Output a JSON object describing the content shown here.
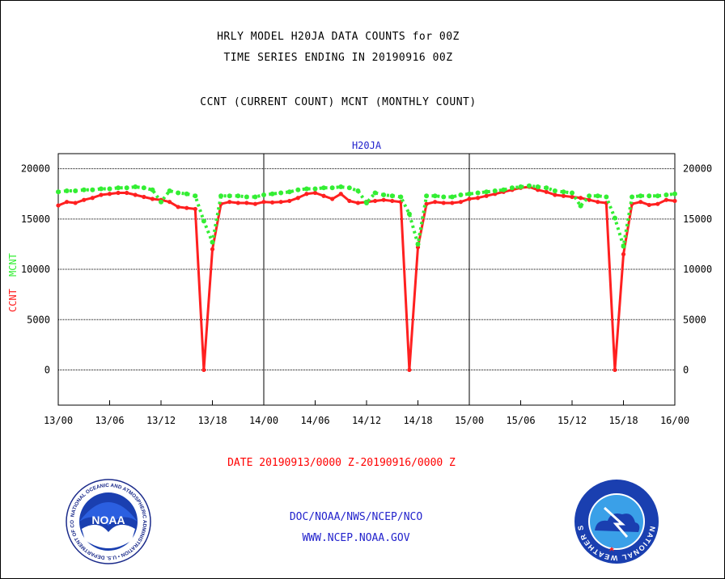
{
  "header": {
    "title_line1": "HRLY MODEL H20JA DATA COUNTS for 00Z",
    "title_line2": "TIME SERIES ENDING IN 20190916 00Z",
    "subtitle": "CCNT (CURRENT COUNT) MCNT (MONTHLY COUNT)"
  },
  "footer": {
    "date_range": "DATE 20190913/0000 Z-20190916/0000 Z",
    "org": "DOC/NOAA/NWS/NCEP/NCO",
    "url": "WWW.NCEP.NOAA.GOV"
  },
  "logos": {
    "noaa_text": "NOAA",
    "noaa_ring": "NATIONAL OCEANIC AND ATMOSPHERIC ADMINISTRATION • U.S. DEPARTMENT OF COMMERCE",
    "nws_ring": "NATIONAL WEATHER SERVICE"
  },
  "colors": {
    "ccnt": "#ff2020",
    "mcnt": "#33ee33",
    "text_blue": "#2222cc"
  },
  "chart_data": {
    "type": "line",
    "title": "H20JA",
    "ylabel_ccnt": "CCNT",
    "ylabel_mcnt": "MCNT",
    "ylim": [
      -3500,
      21500
    ],
    "yticks": [
      0,
      5000,
      10000,
      15000,
      20000
    ],
    "xlim": [
      0,
      72
    ],
    "xtick_labels": [
      "13/00",
      "13/06",
      "13/12",
      "13/18",
      "14/00",
      "14/06",
      "14/12",
      "14/18",
      "15/00",
      "15/06",
      "15/12",
      "15/18",
      "16/00"
    ],
    "grid": true,
    "series": [
      {
        "name": "CCNT",
        "color": "#ff2020",
        "style": "solid",
        "x": [
          0,
          1,
          2,
          3,
          4,
          5,
          6,
          7,
          8,
          9,
          10,
          11,
          12,
          13,
          14,
          15,
          16,
          17,
          18,
          19,
          20,
          21,
          22,
          23,
          24,
          25,
          26,
          27,
          28,
          29,
          30,
          31,
          32,
          33,
          34,
          35,
          36,
          37,
          38,
          39,
          40,
          41,
          42,
          43,
          44,
          45,
          46,
          47,
          48,
          49,
          50,
          51,
          52,
          53,
          54,
          55,
          56,
          57,
          58,
          59,
          60,
          61,
          62,
          63,
          64,
          65,
          66,
          67,
          68,
          69,
          70,
          71,
          72
        ],
        "values": [
          16350,
          16700,
          16600,
          16900,
          17100,
          17400,
          17500,
          17600,
          17600,
          17400,
          17200,
          17000,
          16900,
          16700,
          16200,
          16100,
          16000,
          0,
          12000,
          16500,
          16700,
          16600,
          16600,
          16500,
          16700,
          16650,
          16700,
          16800,
          17100,
          17500,
          17600,
          17300,
          17000,
          17500,
          16800,
          16600,
          16700,
          16800,
          16900,
          16800,
          16700,
          0,
          12200,
          16500,
          16700,
          16600,
          16600,
          16700,
          17000,
          17100,
          17300,
          17500,
          17700,
          17900,
          18100,
          18200,
          17900,
          17700,
          17400,
          17300,
          17200,
          17100,
          16900,
          16700,
          16600,
          0,
          11500,
          16500,
          16700,
          16400,
          16500,
          16900,
          16800
        ]
      },
      {
        "name": "MCNT",
        "color": "#33ee33",
        "style": "dotted",
        "x": [
          0,
          1,
          2,
          3,
          4,
          5,
          6,
          7,
          8,
          9,
          10,
          11,
          12,
          13,
          14,
          15,
          16,
          17,
          18,
          19,
          20,
          21,
          22,
          23,
          24,
          25,
          26,
          27,
          28,
          29,
          30,
          31,
          32,
          33,
          34,
          35,
          36,
          37,
          38,
          39,
          40,
          41,
          42,
          43,
          44,
          45,
          46,
          47,
          48,
          49,
          50,
          51,
          52,
          53,
          54,
          55,
          56,
          57,
          58,
          59,
          60,
          61,
          62,
          63,
          64,
          65,
          66,
          67,
          68,
          69,
          70,
          71,
          72
        ],
        "values": [
          17700,
          17800,
          17800,
          17900,
          17900,
          18000,
          18000,
          18100,
          18100,
          18200,
          18100,
          17900,
          16700,
          17800,
          17600,
          17500,
          17300,
          14800,
          12700,
          17300,
          17300,
          17300,
          17200,
          17200,
          17400,
          17500,
          17600,
          17700,
          17900,
          18000,
          18000,
          18100,
          18100,
          18200,
          18100,
          17800,
          16600,
          17600,
          17400,
          17300,
          17200,
          15500,
          12500,
          17300,
          17300,
          17200,
          17200,
          17400,
          17500,
          17600,
          17700,
          17800,
          17900,
          18100,
          18200,
          18300,
          18200,
          18100,
          17800,
          17700,
          17600,
          16300,
          17300,
          17300,
          17200,
          15100,
          12300,
          17200,
          17300,
          17300,
          17300,
          17400,
          17500
        ]
      }
    ]
  }
}
